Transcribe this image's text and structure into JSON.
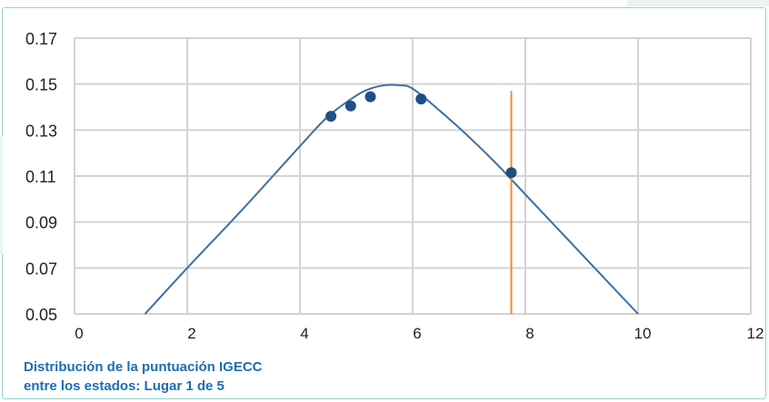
{
  "chart_data": {
    "type": "line",
    "caption_line1": "Distribución de la puntuación IGECC",
    "caption_line2": "entre los estados: Lugar 1 de 5",
    "xlim": [
      0,
      12
    ],
    "ylim": [
      0.05,
      0.17
    ],
    "x_ticks": [
      0,
      2,
      4,
      6,
      8,
      10,
      12
    ],
    "x_tick_labels": [
      "0",
      "2",
      "4",
      "6",
      "8",
      "10",
      "12"
    ],
    "y_ticks": [
      0.05,
      0.07,
      0.09,
      0.11,
      0.13,
      0.15,
      0.17
    ],
    "y_tick_labels": [
      "0.05",
      "0.07",
      "0.09",
      "0.11",
      "0.13",
      "0.15",
      "0.17"
    ],
    "grid": true,
    "curve": {
      "x": [
        1.25,
        2.0,
        3.0,
        4.0,
        4.5,
        5.0,
        5.25,
        5.5,
        5.75,
        6.0,
        6.5,
        7.0,
        7.5,
        8.0,
        9.0,
        10.0
      ],
      "y": [
        0.05,
        0.07,
        0.096,
        0.123,
        0.136,
        0.145,
        0.148,
        0.1495,
        0.1495,
        0.148,
        0.138,
        0.127,
        0.115,
        0.102,
        0.076,
        0.05
      ]
    },
    "points": {
      "x": [
        4.55,
        4.9,
        5.25,
        6.15,
        7.75
      ],
      "y": [
        0.136,
        0.1405,
        0.1445,
        0.1435,
        0.1115
      ]
    },
    "marker_line": {
      "x": 7.75,
      "y_top": 0.147,
      "y_bottom": 0.05
    },
    "colors": {
      "curve": "#3f6e9e",
      "points": "#1f4f86",
      "marker_line": "#f08a2b",
      "grid": "#d3d3d3",
      "caption": "#1b6db4"
    }
  }
}
